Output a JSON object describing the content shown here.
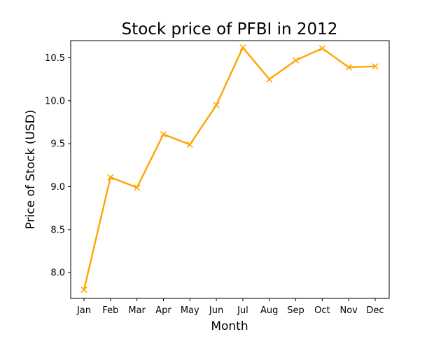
{
  "chart_data": {
    "type": "line",
    "title": "Stock price of PFBI in 2012",
    "xlabel": "Month",
    "ylabel": "Price of Stock (USD)",
    "categories": [
      "Jan",
      "Feb",
      "Mar",
      "Apr",
      "May",
      "Jun",
      "Jul",
      "Aug",
      "Sep",
      "Oct",
      "Nov",
      "Dec"
    ],
    "series": [
      {
        "values": [
          7.8,
          9.11,
          8.99,
          9.61,
          9.49,
          9.95,
          10.62,
          10.25,
          10.47,
          10.61,
          10.39,
          10.4
        ],
        "color": "#ffa500",
        "marker": "x"
      }
    ],
    "ylim": [
      7.7,
      10.7
    ],
    "yticks": [
      "8.0",
      "8.5",
      "9.0",
      "9.5",
      "10.0",
      "10.5"
    ],
    "grid": false,
    "legend": "none"
  }
}
